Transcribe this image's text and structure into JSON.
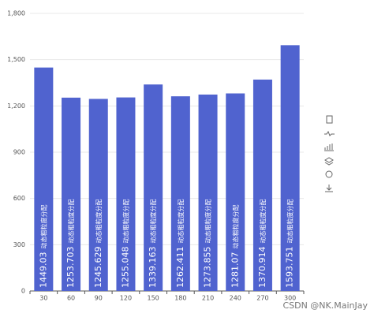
{
  "chart_data": {
    "type": "bar",
    "categories": [
      "30",
      "60",
      "90",
      "120",
      "150",
      "180",
      "210",
      "240",
      "270",
      "300"
    ],
    "series": [
      {
        "name": "动态粗粒度分配",
        "color": "#5063cf",
        "values": [
          1449.03,
          1253.703,
          1245.629,
          1255.048,
          1339.163,
          1262.411,
          1273.855,
          1281.07,
          1370.914,
          1593.751
        ]
      }
    ],
    "ylim": [
      0,
      1800
    ],
    "yticks": [
      0,
      300,
      600,
      900,
      {
        "value": 1200,
        "label": "1,200"
      },
      {
        "value": 1500,
        "label": "1,500"
      },
      {
        "value": 1800,
        "label": "1,800"
      }
    ],
    "grid": true
  },
  "watermark": "CSDN @NK.MainJay"
}
